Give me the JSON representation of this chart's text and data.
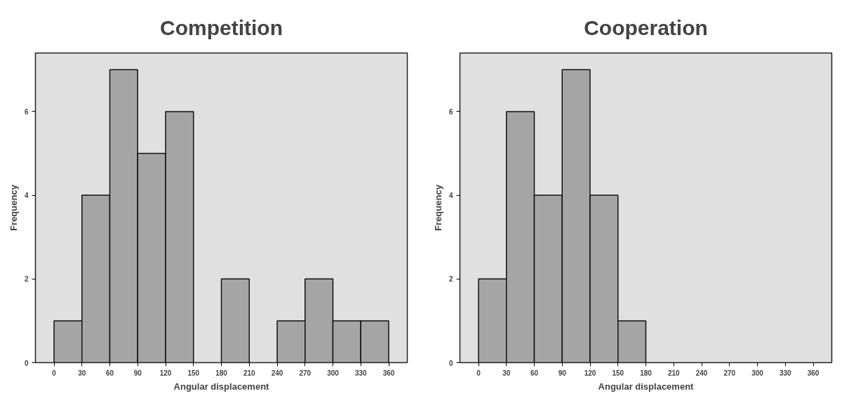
{
  "chart_data": [
    {
      "type": "histogram",
      "title": "Competition",
      "xlabel": "Angular displacement",
      "ylabel": "Frequency",
      "bins": [
        0,
        30,
        60,
        90,
        120,
        150,
        180,
        210,
        240,
        270,
        300,
        330,
        360
      ],
      "values": [
        1,
        4,
        7,
        5,
        6,
        0,
        2,
        0,
        1,
        2,
        1,
        1
      ],
      "color": "#a5a5a5",
      "xlim": [
        -20,
        380
      ],
      "ylim": [
        0,
        7.4
      ],
      "xticks": [
        0,
        30,
        60,
        90,
        120,
        150,
        180,
        210,
        240,
        270,
        300,
        330,
        360
      ],
      "yticks": [
        0,
        2,
        4,
        6
      ],
      "grid": false
    },
    {
      "type": "histogram",
      "title": "Cooperation",
      "xlabel": "Angular displacement",
      "ylabel": "Frequency",
      "bins": [
        0,
        30,
        60,
        90,
        120,
        150,
        180,
        210,
        240,
        270,
        300,
        330,
        360
      ],
      "values": [
        2,
        6,
        4,
        7,
        4,
        1,
        0,
        0,
        0,
        0,
        0,
        0
      ],
      "color": "#a5a5a5",
      "xlim": [
        -20,
        380
      ],
      "ylim": [
        0,
        7.4
      ],
      "xticks": [
        0,
        30,
        60,
        90,
        120,
        150,
        180,
        210,
        240,
        270,
        300,
        330,
        360
      ],
      "yticks": [
        0,
        2,
        4,
        6
      ],
      "grid": false
    }
  ]
}
